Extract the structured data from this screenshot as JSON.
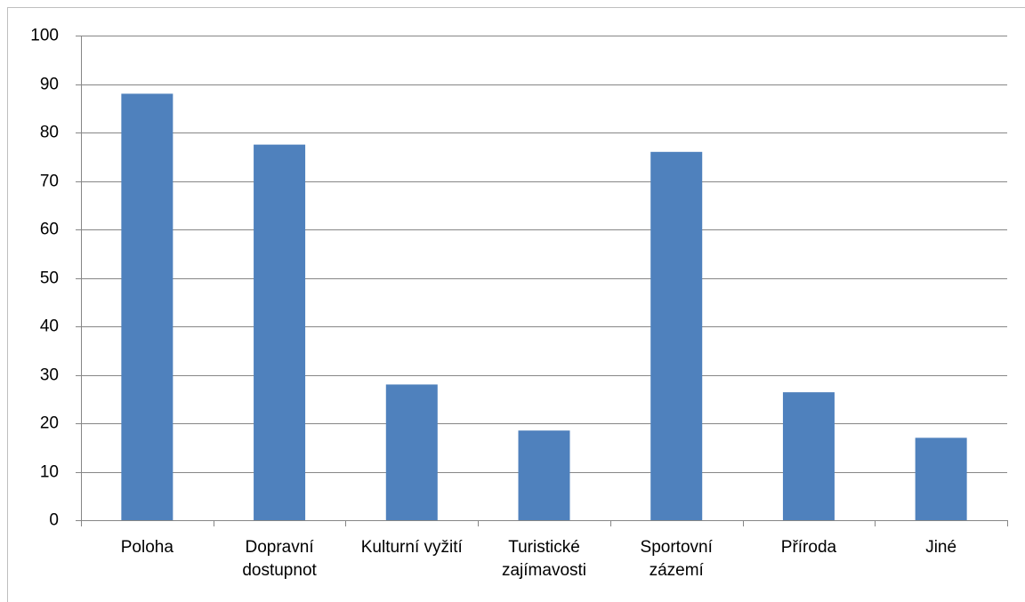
{
  "chart_data": {
    "type": "bar",
    "categories": [
      "Poloha",
      "Dopravní\ndostupnot",
      "Kulturní vyžití",
      "Turistické\nzajímavosti",
      "Sportovní\nzázemí",
      "Příroda",
      "Jiné"
    ],
    "values": [
      88,
      77.5,
      28,
      18.5,
      76,
      26.4,
      17
    ],
    "color": "#4f81bd",
    "ylim": [
      0,
      100
    ],
    "yticks": [
      0,
      10,
      20,
      30,
      40,
      50,
      60,
      70,
      80,
      90,
      100
    ],
    "grid": true
  }
}
